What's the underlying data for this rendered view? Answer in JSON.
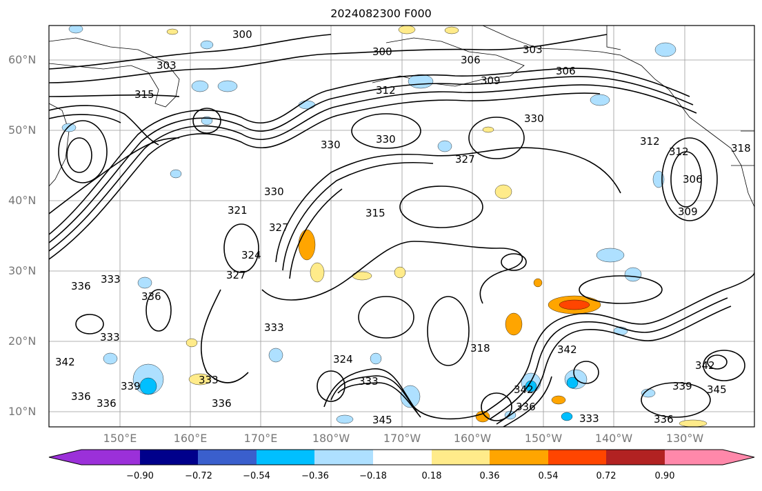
{
  "title": "2024082300 F000",
  "lat_labels": [
    "60°N",
    "50°N",
    "40°N",
    "30°N",
    "20°N",
    "10°N"
  ],
  "lon_labels": [
    "150°E",
    "160°E",
    "170°E",
    "180°W",
    "170°W",
    "160°W",
    "150°W",
    "140°W",
    "130°W"
  ],
  "colorbar": {
    "ticks": [
      "−0.90",
      "−0.72",
      "−0.54",
      "−0.36",
      "−0.18",
      "0.18",
      "0.36",
      "0.54",
      "0.72",
      "0.90"
    ],
    "colors": [
      "#9b30d9",
      "#00008b",
      "#3a5fcd",
      "#00bfff",
      "#aee0ff",
      "#ffffff",
      "#ffeb8a",
      "#ffa500",
      "#ff4500",
      "#b22222",
      "#ff88aa"
    ]
  },
  "contour_labels": [
    "300",
    "300",
    "303",
    "303",
    "306",
    "306",
    "309",
    "315",
    "312",
    "330",
    "330",
    "330",
    "327",
    "330",
    "315",
    "327",
    "312",
    "312",
    "306",
    "309",
    "318",
    "321",
    "327",
    "324",
    "333",
    "336",
    "333",
    "333",
    "336",
    "339",
    "336",
    "333",
    "336",
    "324",
    "333",
    "342",
    "342",
    "345",
    "339",
    "336",
    "336",
    "333",
    "342",
    "318",
    "345",
    "336",
    "342"
  ]
}
